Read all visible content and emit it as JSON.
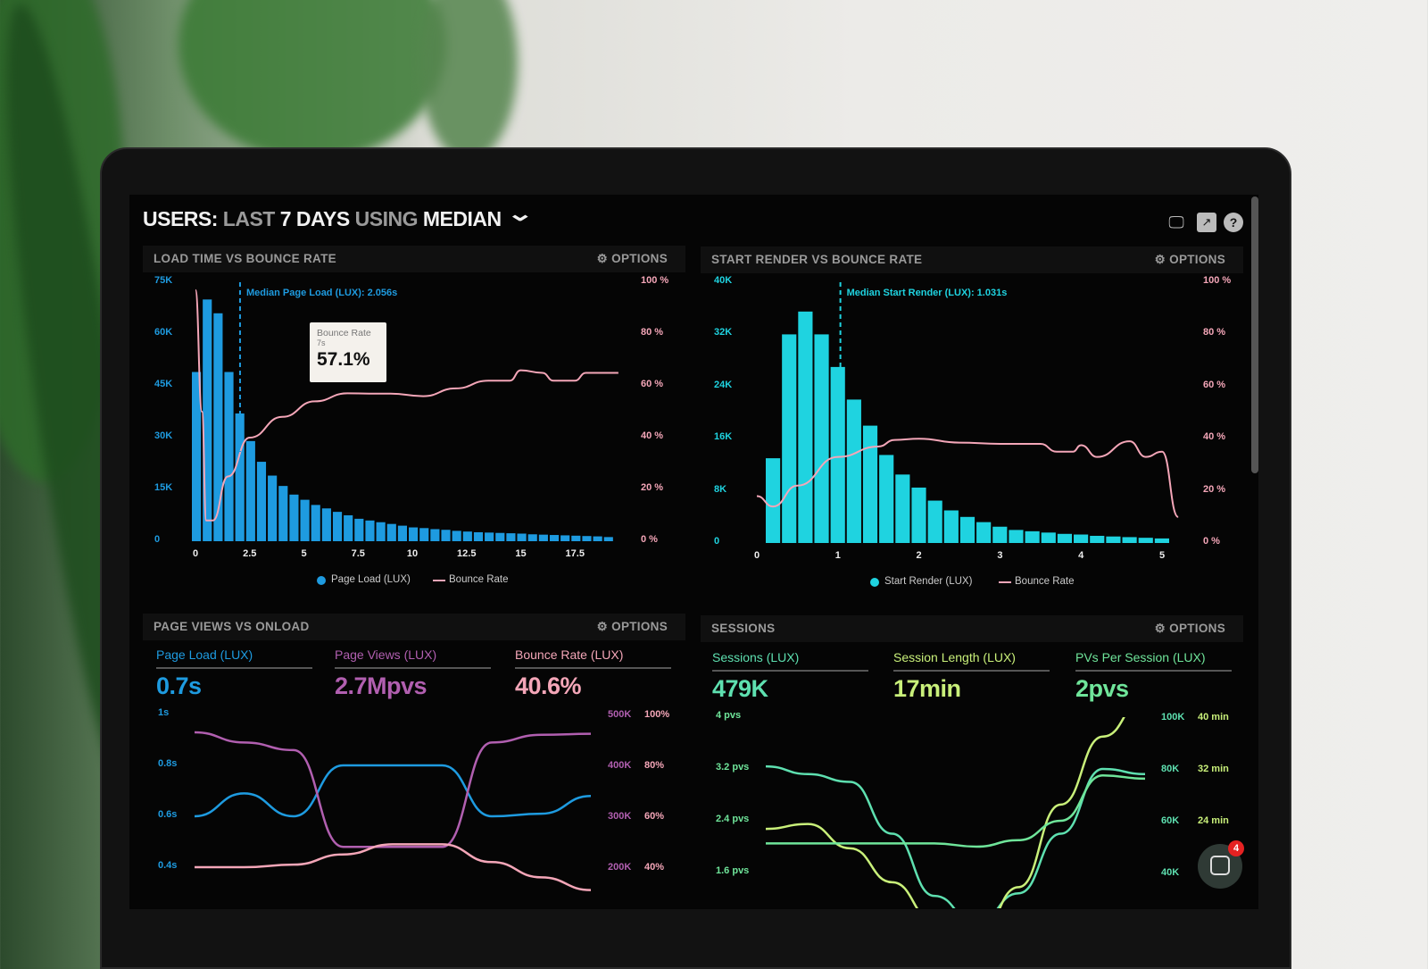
{
  "header": {
    "title": [
      {
        "text": "USERS:",
        "dim": false
      },
      {
        "text": "LAST",
        "dim": true
      },
      {
        "text": "7 DAYS",
        "dim": false
      },
      {
        "text": "USING",
        "dim": true
      },
      {
        "text": "MEDIAN",
        "dim": false
      }
    ],
    "icons": [
      "monitor-icon",
      "share-icon",
      "help-icon"
    ],
    "dropdown_icon": "chevron-down-icon"
  },
  "colors": {
    "page_load": "#1e9be0",
    "start_render": "#1fd3e0",
    "bounce": "#f4a6b8",
    "page_views": "#b15fb0",
    "sessions": "#5ee0b0",
    "session_length": "#c9f07a",
    "pvs": "#6fe59a"
  },
  "options_label": "OPTIONS",
  "chat": {
    "badge": "4"
  },
  "chart_data": [
    {
      "type": "bar",
      "title": "LOAD TIME VS BOUNCE RATE",
      "annotation": "Median Page Load (LUX): 2.056s",
      "median": 2.056,
      "y_ticks": [
        "0",
        "15K",
        "30K",
        "45K",
        "60K",
        "75K"
      ],
      "y2_ticks": [
        "0 %",
        "20 %",
        "40 %",
        "60 %",
        "80 %",
        "100 %"
      ],
      "x_ticks": [
        "0",
        "2.5",
        "5",
        "7.5",
        "10",
        "12.5",
        "15",
        "17.5"
      ],
      "ylim": [
        0,
        75000
      ],
      "y2lim": [
        0,
        100
      ],
      "xlim": [
        0,
        19.5
      ],
      "legend": [
        "Page Load (LUX)",
        "Bounce Rate"
      ],
      "tooltip": {
        "label": "Bounce Rate",
        "x": "7s",
        "value": "57.1%"
      },
      "bin_width": 0.5,
      "series": [
        {
          "name": "Page Load (LUX)",
          "values": [
            49,
            70,
            66,
            49,
            37,
            29,
            23,
            19,
            16,
            13.5,
            12,
            10.5,
            9.5,
            8.5,
            7.5,
            6.5,
            6,
            5.5,
            5,
            4.5,
            4,
            3.8,
            3.5,
            3.3,
            3,
            2.8,
            2.6,
            2.5,
            2.4,
            2.3,
            2.2,
            2,
            1.9,
            1.8,
            1.7,
            1.6,
            1.5,
            1.4,
            1.2
          ],
          "unit": "K"
        },
        {
          "name": "Bounce Rate",
          "points": [
            [
              0,
              97
            ],
            [
              0.3,
              50
            ],
            [
              0.5,
              8
            ],
            [
              0.8,
              8
            ],
            [
              1.5,
              25
            ],
            [
              2.5,
              40
            ],
            [
              4,
              48
            ],
            [
              5.5,
              54
            ],
            [
              7,
              57.1
            ],
            [
              8,
              57
            ],
            [
              9,
              57
            ],
            [
              10.5,
              56
            ],
            [
              12,
              59
            ],
            [
              13.5,
              62
            ],
            [
              14.5,
              62
            ],
            [
              15,
              66
            ],
            [
              16,
              65
            ],
            [
              16.5,
              62
            ],
            [
              17.5,
              62
            ],
            [
              18,
              65
            ],
            [
              19.5,
              65
            ]
          ]
        }
      ]
    },
    {
      "type": "bar",
      "title": "START RENDER VS BOUNCE RATE",
      "annotation": "Median Start Render (LUX): 1.031s",
      "median": 1.031,
      "y_ticks": [
        "0",
        "8K",
        "16K",
        "24K",
        "32K",
        "40K"
      ],
      "y2_ticks": [
        "0 %",
        "20 %",
        "40 %",
        "60 %",
        "80 %",
        "100 %"
      ],
      "x_ticks": [
        "0",
        "1",
        "2",
        "3",
        "4",
        "5"
      ],
      "ylim": [
        0,
        40000
      ],
      "y2lim": [
        0,
        100
      ],
      "xlim": [
        0,
        5.2
      ],
      "legend": [
        "Start Render (LUX)",
        "Bounce Rate"
      ],
      "bin_width": 0.2,
      "series": [
        {
          "name": "Start Render (LUX)",
          "values": [
            13,
            32,
            35.5,
            32,
            27,
            22,
            18,
            13.5,
            10.5,
            8.5,
            6.5,
            5,
            4,
            3.2,
            2.5,
            2,
            1.8,
            1.6,
            1.4,
            1.3,
            1.1,
            1,
            0.9,
            0.8,
            0.7
          ],
          "unit": "K"
        },
        {
          "name": "Bounce Rate",
          "points": [
            [
              0,
              18
            ],
            [
              0.2,
              14
            ],
            [
              0.5,
              22
            ],
            [
              1,
              33
            ],
            [
              1.5,
              37
            ],
            [
              1.7,
              39.5
            ],
            [
              2,
              40
            ],
            [
              2.5,
              38.5
            ],
            [
              3,
              38
            ],
            [
              3.5,
              38
            ],
            [
              3.7,
              35
            ],
            [
              3.9,
              35
            ],
            [
              4,
              37.5
            ],
            [
              4.2,
              33
            ],
            [
              4.6,
              39
            ],
            [
              4.8,
              33
            ],
            [
              5,
              35
            ],
            [
              5.2,
              10
            ]
          ]
        }
      ]
    },
    {
      "type": "line",
      "title": "PAGE VIEWS VS ONLOAD",
      "kpis": [
        {
          "label": "Page Load (LUX)",
          "value": "0.7s"
        },
        {
          "label": "Page Views (LUX)",
          "value": "2.7Mpvs"
        },
        {
          "label": "Bounce Rate (LUX)",
          "value": "40.6%"
        }
      ],
      "y_ticks": [
        "0.4s",
        "0.6s",
        "0.8s",
        "1s"
      ],
      "y2_ticks": [
        "200K",
        "300K",
        "400K",
        "500K"
      ],
      "y3_ticks": [
        "40%",
        "60%",
        "80%",
        "100%"
      ],
      "series": [
        {
          "name": "Page Load (LUX)",
          "axis": "s",
          "values": [
            0.6,
            0.69,
            0.6,
            0.8,
            0.8,
            0.8,
            0.6,
            0.61,
            0.68
          ]
        },
        {
          "name": "Page Views (LUX)",
          "axis": "K",
          "values": [
            465,
            445,
            430,
            240,
            240,
            240,
            445,
            460,
            462
          ]
        },
        {
          "name": "Bounce Rate (LUX)",
          "axis": "%",
          "values": [
            40,
            40,
            41,
            45,
            49,
            49,
            42,
            36,
            31
          ]
        }
      ]
    },
    {
      "type": "line",
      "title": "SESSIONS",
      "kpis": [
        {
          "label": "Sessions (LUX)",
          "value": "479K"
        },
        {
          "label": "Session Length (LUX)",
          "value": "17min"
        },
        {
          "label": "PVs Per Session (LUX)",
          "value": "2pvs"
        }
      ],
      "y_ticks": [
        "1.6 pvs",
        "2.4 pvs",
        "3.2 pvs",
        "4 pvs"
      ],
      "y2_ticks": [
        "40K",
        "60K",
        "80K",
        "100K"
      ],
      "y3_ticks": [
        "24 min",
        "32 min",
        "40 min"
      ],
      "series": [
        {
          "name": "Sessions (LUX)",
          "axis": "K",
          "values": [
            81,
            78,
            75,
            55,
            31,
            20,
            32,
            55,
            80,
            78
          ]
        },
        {
          "name": "Session Length (LUX)",
          "axis": "min",
          "values": [
            17,
            18,
            13,
            6,
            -2,
            -6,
            5,
            22,
            36,
            44
          ]
        },
        {
          "name": "PVs Per Session (LUX)",
          "axis": "pvs",
          "values": [
            2.05,
            2.05,
            2.05,
            2.05,
            2.05,
            2.0,
            2.1,
            2.4,
            3.1,
            3.05
          ]
        }
      ]
    }
  ]
}
